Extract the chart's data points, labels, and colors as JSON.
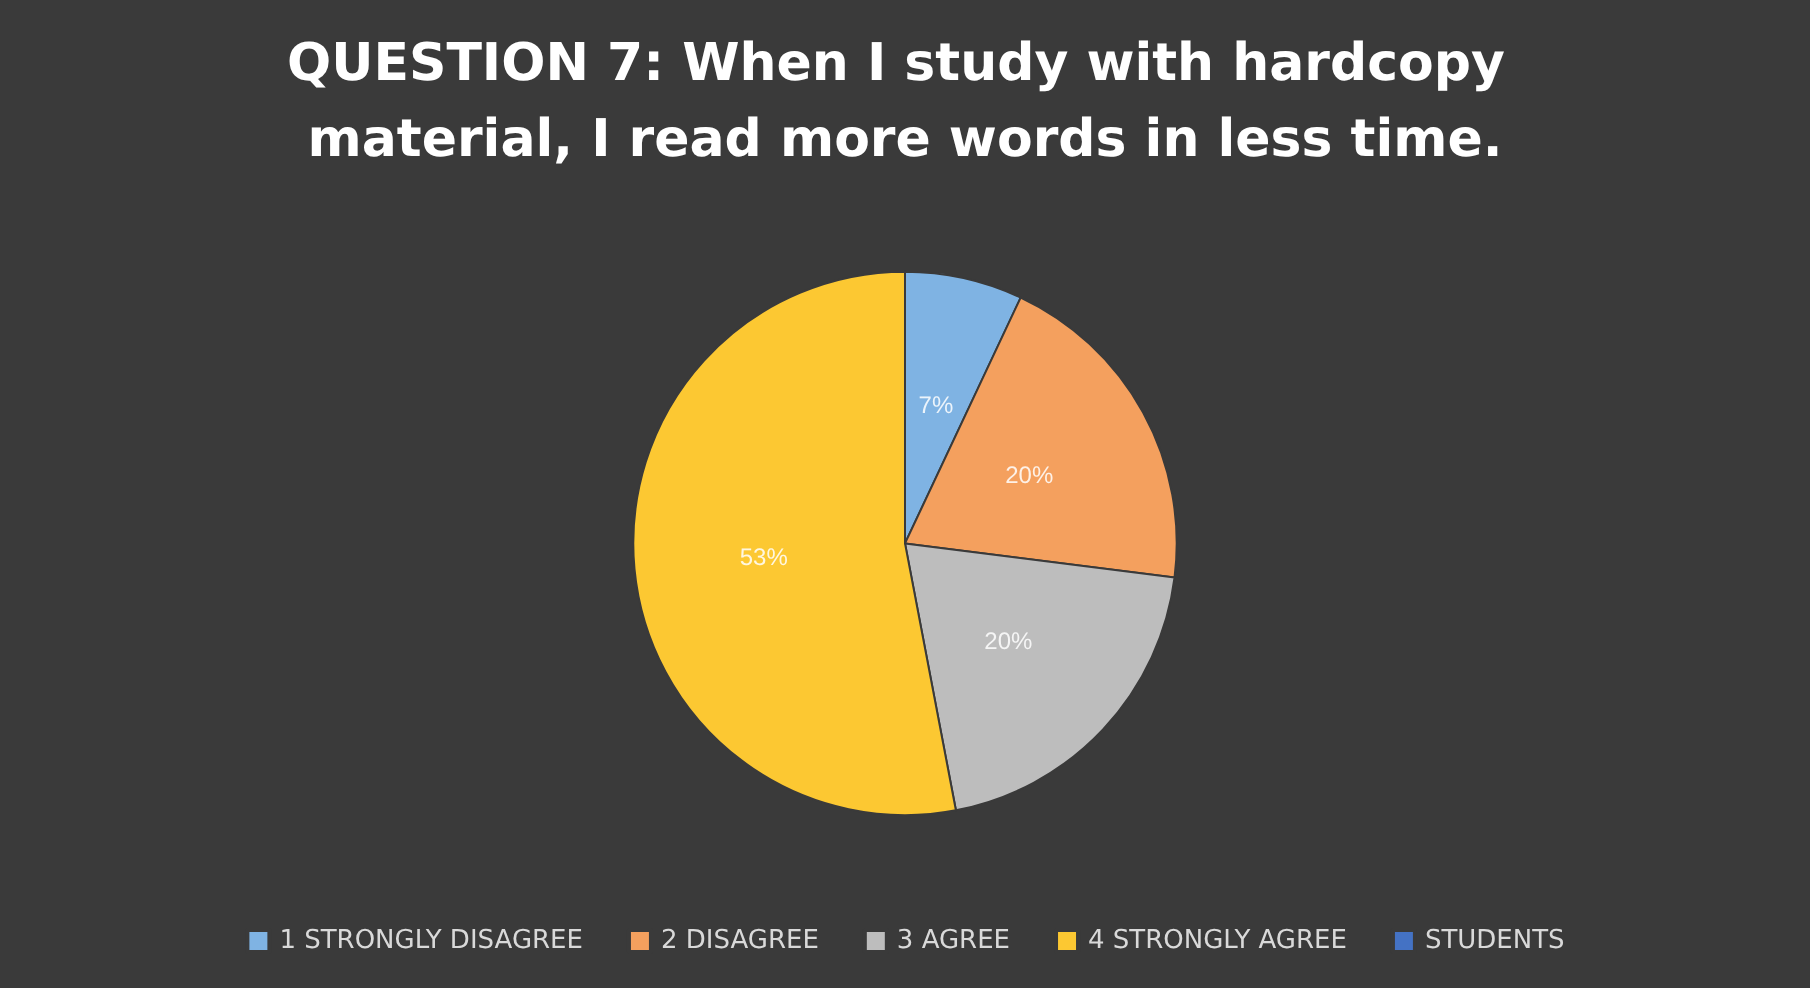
{
  "chart_data": {
    "type": "pie",
    "title": "QUESTION 7: When I study with hardcopy material, I read more words in less time.",
    "categories": [
      "1 STRONGLY DISAGREE",
      "2 DISAGREE",
      "3 AGREE",
      "4 STRONGLY AGREE",
      "STUDENTS"
    ],
    "values": [
      7,
      20,
      20,
      53,
      0
    ],
    "colors": [
      "#7fb3e3",
      "#f4a05e",
      "#bdbdbd",
      "#fcc832",
      "#4472c4"
    ],
    "value_labels": [
      "7%",
      "20%",
      "20%",
      "53%",
      null
    ],
    "legend": "bottom"
  }
}
